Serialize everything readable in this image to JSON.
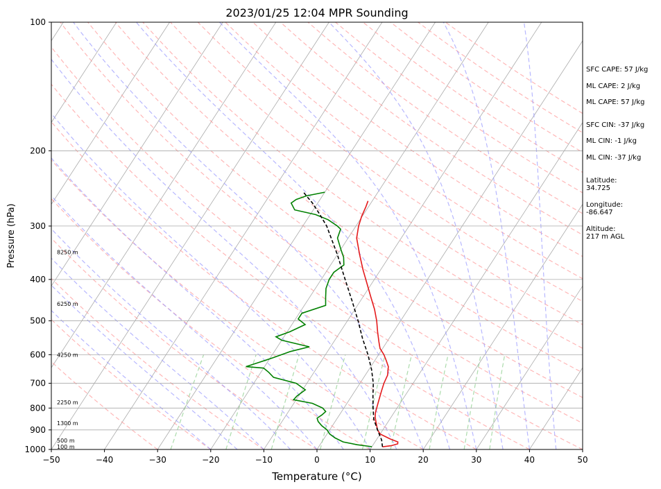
{
  "chart_data": {
    "type": "line",
    "title": "2023/01/25 12:04 MPR Sounding",
    "xlabel": "Temperature (°C)",
    "ylabel": "Pressure (hPa)",
    "xlim": [
      -50,
      50
    ],
    "ylim": [
      1000,
      100
    ],
    "yscale": "log",
    "x_ticks": [
      -50,
      -40,
      -30,
      -20,
      -10,
      0,
      10,
      20,
      30,
      40,
      50
    ],
    "x_tick_labels": [
      "−50",
      "−40",
      "−30",
      "−20",
      "−10",
      "0",
      "10",
      "20",
      "30",
      "40",
      "50"
    ],
    "y_ticks": [
      1000,
      900,
      800,
      700,
      600,
      500,
      400,
      300,
      200,
      100
    ],
    "y_tick_labels": [
      "1000",
      "900",
      "800",
      "700",
      "600",
      "500",
      "400",
      "300",
      "200",
      "100"
    ],
    "skew": "skew-T log-p",
    "horizontal_grid": true,
    "series": [
      {
        "role": "temperature",
        "color": "#e41a1c",
        "points": [
          [
            986,
            12.0
          ],
          [
            980,
            13.5
          ],
          [
            970,
            14.5
          ],
          [
            960,
            14.3
          ],
          [
            945,
            12.5
          ],
          [
            920,
            10.0
          ],
          [
            900,
            9.0
          ],
          [
            870,
            8.0
          ],
          [
            840,
            7.0
          ],
          [
            820,
            6.5
          ],
          [
            790,
            6.0
          ],
          [
            760,
            5.5
          ],
          [
            730,
            5.0
          ],
          [
            700,
            4.5
          ],
          [
            670,
            4.2
          ],
          [
            640,
            3.3
          ],
          [
            620,
            2.2
          ],
          [
            600,
            1.0
          ],
          [
            580,
            -0.5
          ],
          [
            560,
            -1.5
          ],
          [
            530,
            -3.0
          ],
          [
            500,
            -4.5
          ],
          [
            470,
            -6.3
          ],
          [
            440,
            -8.5
          ],
          [
            410,
            -10.8
          ],
          [
            380,
            -13.3
          ],
          [
            350,
            -15.8
          ],
          [
            320,
            -18.4
          ],
          [
            300,
            -19.5
          ],
          [
            285,
            -20.1
          ],
          [
            270,
            -20.5
          ],
          [
            262,
            -20.8
          ]
        ]
      },
      {
        "role": "dewpoint",
        "color": "#008000",
        "points": [
          [
            985,
            10.0
          ],
          [
            975,
            7.0
          ],
          [
            960,
            4.0
          ],
          [
            940,
            2.0
          ],
          [
            920,
            0.5
          ],
          [
            900,
            -0.5
          ],
          [
            880,
            -2.0
          ],
          [
            860,
            -3.2
          ],
          [
            845,
            -3.8
          ],
          [
            830,
            -3.3
          ],
          [
            815,
            -3.0
          ],
          [
            800,
            -4.0
          ],
          [
            780,
            -6.5
          ],
          [
            765,
            -10.5
          ],
          [
            750,
            -10.3
          ],
          [
            725,
            -9.5
          ],
          [
            700,
            -12.0
          ],
          [
            678,
            -17.0
          ],
          [
            660,
            -18.5
          ],
          [
            645,
            -20.0
          ],
          [
            640,
            -23.5
          ],
          [
            625,
            -21.5
          ],
          [
            610,
            -19.5
          ],
          [
            590,
            -17.0
          ],
          [
            575,
            -14.0
          ],
          [
            555,
            -20.0
          ],
          [
            545,
            -21.5
          ],
          [
            530,
            -19.5
          ],
          [
            510,
            -17.5
          ],
          [
            495,
            -19.5
          ],
          [
            480,
            -19.5
          ],
          [
            460,
            -16.0
          ],
          [
            440,
            -17.0
          ],
          [
            420,
            -18.0
          ],
          [
            400,
            -18.5
          ],
          [
            385,
            -18.5
          ],
          [
            370,
            -17.5
          ],
          [
            355,
            -18.5
          ],
          [
            340,
            -20.0
          ],
          [
            320,
            -22.0
          ],
          [
            305,
            -22.5
          ],
          [
            300,
            -23.5
          ],
          [
            290,
            -26.0
          ],
          [
            282,
            -29.0
          ],
          [
            275,
            -33.5
          ],
          [
            265,
            -35.0
          ],
          [
            260,
            -34.5
          ],
          [
            255,
            -33.0
          ],
          [
            250,
            -30.0
          ]
        ]
      },
      {
        "role": "parcel",
        "style": "dashed",
        "color": "#000000",
        "points": [
          [
            986,
            12.0
          ],
          [
            950,
            11.0
          ],
          [
            900,
            9.0
          ],
          [
            850,
            7.0
          ],
          [
            800,
            5.5
          ],
          [
            750,
            4.0
          ],
          [
            700,
            2.5
          ],
          [
            650,
            0.5
          ],
          [
            600,
            -2.0
          ],
          [
            550,
            -5.0
          ],
          [
            500,
            -8.0
          ],
          [
            450,
            -11.5
          ],
          [
            400,
            -15.5
          ],
          [
            350,
            -20.0
          ],
          [
            300,
            -25.5
          ],
          [
            280,
            -28.5
          ],
          [
            265,
            -31.0
          ],
          [
            255,
            -33.0
          ],
          [
            250,
            -34.0
          ]
        ]
      }
    ],
    "height_labels": [
      {
        "text": "100 m",
        "pressure": 985
      },
      {
        "text": "500 m",
        "pressure": 952
      },
      {
        "text": "1300 m",
        "pressure": 868
      },
      {
        "text": "2250 m",
        "pressure": 775
      },
      {
        "text": "4250 m",
        "pressure": 600
      },
      {
        "text": "6250 m",
        "pressure": 456
      },
      {
        "text": "8250 m",
        "pressure": 345
      }
    ],
    "background_lines": {
      "isotherms_color": "#aaaaaa",
      "dry_adiabats_color": "#ff9999",
      "moist_adiabats_color": "#9999ff",
      "mixing_ratio_color": "#88cc88"
    }
  },
  "indices": {
    "sfc_cape": "SFC CAPE: 57 J/kg",
    "ml_cape_1": "ML CAPE: 2 J/kg",
    "ml_cape_2": "ML CAPE: 57 J/kg",
    "sfc_cin": "SFC CIN: -37 J/kg",
    "ml_cin_1": "ML CIN: -1 J/kg",
    "ml_cin_2": "ML CIN: -37 J/kg"
  },
  "location": {
    "latitude_label": "Latitude:",
    "latitude": "34.725",
    "longitude_label": "Longitude:",
    "longitude": "-86.647",
    "altitude_label": "Altitude:",
    "altitude": "217 m AGL"
  }
}
